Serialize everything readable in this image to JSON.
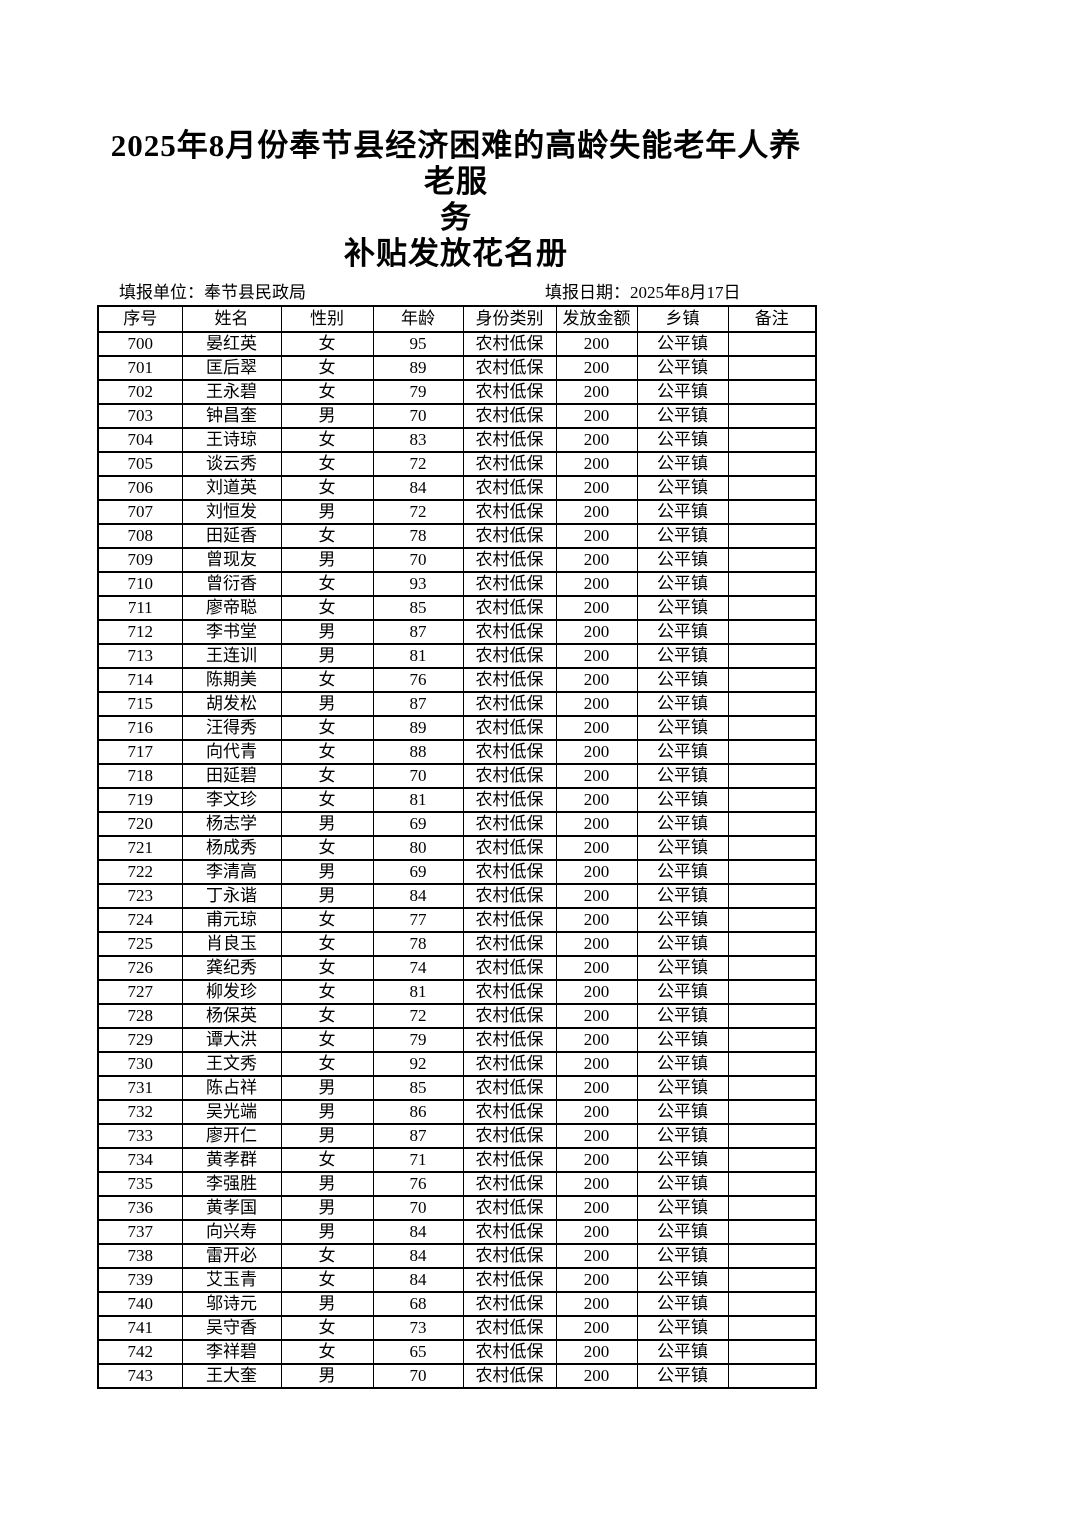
{
  "page": {
    "title_line1": "2025年8月份奉节县经济困难的高龄失能老年人养老服",
    "title_line2": "务",
    "title_line3": "补贴发放花名册",
    "meta": {
      "unit": "填报单位：奉节县民政局",
      "date": "填报日期：2025年8月17日"
    }
  },
  "table": {
    "headers": [
      "序号",
      "姓名",
      "性别",
      "年龄",
      "身份类别",
      "发放金额",
      "乡镇",
      "备注"
    ],
    "rows": [
      [
        "700",
        "晏红英",
        "女",
        "95",
        "农村低保",
        "200",
        "公平镇",
        ""
      ],
      [
        "701",
        "匡后翠",
        "女",
        "89",
        "农村低保",
        "200",
        "公平镇",
        ""
      ],
      [
        "702",
        "王永碧",
        "女",
        "79",
        "农村低保",
        "200",
        "公平镇",
        ""
      ],
      [
        "703",
        "钟昌奎",
        "男",
        "70",
        "农村低保",
        "200",
        "公平镇",
        ""
      ],
      [
        "704",
        "王诗琼",
        "女",
        "83",
        "农村低保",
        "200",
        "公平镇",
        ""
      ],
      [
        "705",
        "谈云秀",
        "女",
        "72",
        "农村低保",
        "200",
        "公平镇",
        ""
      ],
      [
        "706",
        "刘道英",
        "女",
        "84",
        "农村低保",
        "200",
        "公平镇",
        ""
      ],
      [
        "707",
        "刘恒发",
        "男",
        "72",
        "农村低保",
        "200",
        "公平镇",
        ""
      ],
      [
        "708",
        "田延香",
        "女",
        "78",
        "农村低保",
        "200",
        "公平镇",
        ""
      ],
      [
        "709",
        "曾现友",
        "男",
        "70",
        "农村低保",
        "200",
        "公平镇",
        ""
      ],
      [
        "710",
        "曾衍香",
        "女",
        "93",
        "农村低保",
        "200",
        "公平镇",
        ""
      ],
      [
        "711",
        "廖帝聪",
        "女",
        "85",
        "农村低保",
        "200",
        "公平镇",
        ""
      ],
      [
        "712",
        "李书堂",
        "男",
        "87",
        "农村低保",
        "200",
        "公平镇",
        ""
      ],
      [
        "713",
        "王连训",
        "男",
        "81",
        "农村低保",
        "200",
        "公平镇",
        ""
      ],
      [
        "714",
        "陈期美",
        "女",
        "76",
        "农村低保",
        "200",
        "公平镇",
        ""
      ],
      [
        "715",
        "胡发松",
        "男",
        "87",
        "农村低保",
        "200",
        "公平镇",
        ""
      ],
      [
        "716",
        "汪得秀",
        "女",
        "89",
        "农村低保",
        "200",
        "公平镇",
        ""
      ],
      [
        "717",
        "向代青",
        "女",
        "88",
        "农村低保",
        "200",
        "公平镇",
        ""
      ],
      [
        "718",
        "田延碧",
        "女",
        "70",
        "农村低保",
        "200",
        "公平镇",
        ""
      ],
      [
        "719",
        "李文珍",
        "女",
        "81",
        "农村低保",
        "200",
        "公平镇",
        ""
      ],
      [
        "720",
        "杨志学",
        "男",
        "69",
        "农村低保",
        "200",
        "公平镇",
        ""
      ],
      [
        "721",
        "杨成秀",
        "女",
        "80",
        "农村低保",
        "200",
        "公平镇",
        ""
      ],
      [
        "722",
        "李清高",
        "男",
        "69",
        "农村低保",
        "200",
        "公平镇",
        ""
      ],
      [
        "723",
        "丁永谐",
        "男",
        "84",
        "农村低保",
        "200",
        "公平镇",
        ""
      ],
      [
        "724",
        "甫元琼",
        "女",
        "77",
        "农村低保",
        "200",
        "公平镇",
        ""
      ],
      [
        "725",
        "肖良玉",
        "女",
        "78",
        "农村低保",
        "200",
        "公平镇",
        ""
      ],
      [
        "726",
        "龚纪秀",
        "女",
        "74",
        "农村低保",
        "200",
        "公平镇",
        ""
      ],
      [
        "727",
        "柳发珍",
        "女",
        "81",
        "农村低保",
        "200",
        "公平镇",
        ""
      ],
      [
        "728",
        "杨保英",
        "女",
        "72",
        "农村低保",
        "200",
        "公平镇",
        ""
      ],
      [
        "729",
        "谭大洪",
        "女",
        "79",
        "农村低保",
        "200",
        "公平镇",
        ""
      ],
      [
        "730",
        "王文秀",
        "女",
        "92",
        "农村低保",
        "200",
        "公平镇",
        ""
      ],
      [
        "731",
        "陈占祥",
        "男",
        "85",
        "农村低保",
        "200",
        "公平镇",
        ""
      ],
      [
        "732",
        "吴光端",
        "男",
        "86",
        "农村低保",
        "200",
        "公平镇",
        ""
      ],
      [
        "733",
        "廖开仁",
        "男",
        "87",
        "农村低保",
        "200",
        "公平镇",
        ""
      ],
      [
        "734",
        "黄孝群",
        "女",
        "71",
        "农村低保",
        "200",
        "公平镇",
        ""
      ],
      [
        "735",
        "李强胜",
        "男",
        "76",
        "农村低保",
        "200",
        "公平镇",
        ""
      ],
      [
        "736",
        "黄孝国",
        "男",
        "70",
        "农村低保",
        "200",
        "公平镇",
        ""
      ],
      [
        "737",
        "向兴寿",
        "男",
        "84",
        "农村低保",
        "200",
        "公平镇",
        ""
      ],
      [
        "738",
        "雷开必",
        "女",
        "84",
        "农村低保",
        "200",
        "公平镇",
        ""
      ],
      [
        "739",
        "艾玉青",
        "女",
        "84",
        "农村低保",
        "200",
        "公平镇",
        ""
      ],
      [
        "740",
        "邬诗元",
        "男",
        "68",
        "农村低保",
        "200",
        "公平镇",
        ""
      ],
      [
        "741",
        "吴守香",
        "女",
        "73",
        "农村低保",
        "200",
        "公平镇",
        ""
      ],
      [
        "742",
        "李祥碧",
        "女",
        "65",
        "农村低保",
        "200",
        "公平镇",
        ""
      ],
      [
        "743",
        "王大奎",
        "男",
        "70",
        "农村低保",
        "200",
        "公平镇",
        ""
      ]
    ]
  }
}
